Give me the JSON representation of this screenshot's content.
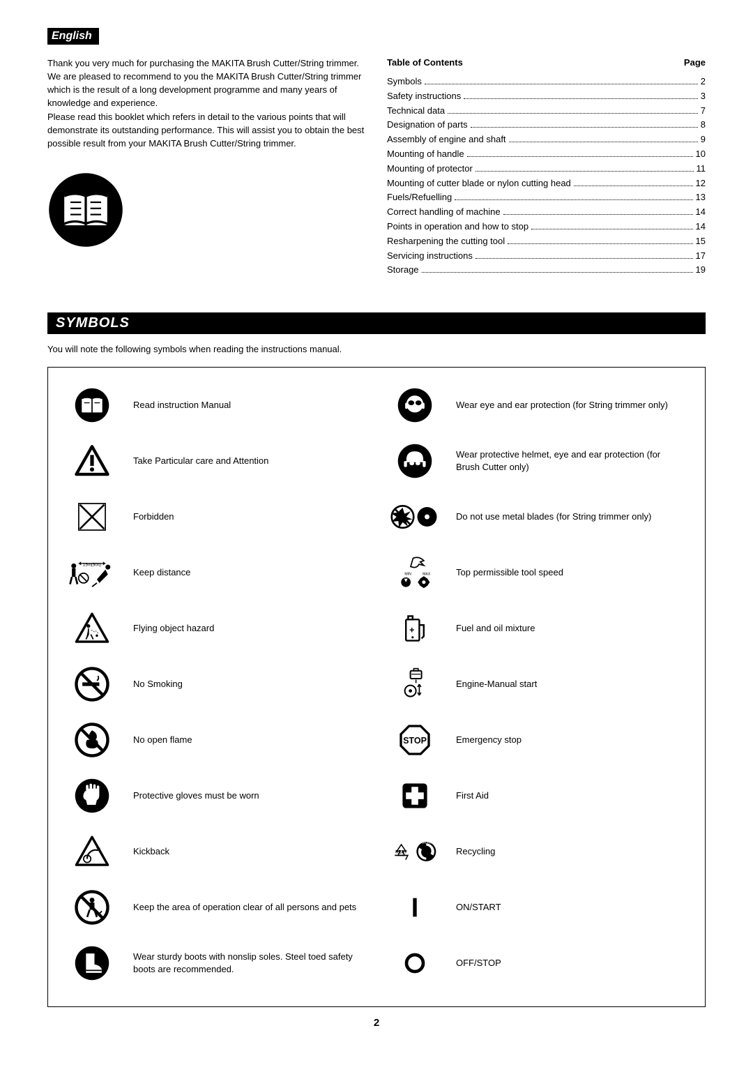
{
  "language_tag": "English",
  "intro": {
    "p1": "Thank you very much for purchasing the MAKITA Brush Cutter/String trimmer. We are pleased to recommend to you the MAKITA Brush Cutter/String trimmer which is the result of a long development programme and many years of knowledge and experience.",
    "p2": "Please read this booklet which refers in detail to the various points that will demonstrate its outstanding performance.  This will assist you to obtain the best possible result from your MAKITA Brush Cutter/String trimmer."
  },
  "toc": {
    "header_left": "Table of Contents",
    "header_right": "Page",
    "items": [
      {
        "title": "Symbols",
        "page": "2"
      },
      {
        "title": "Safety instructions",
        "page": "3"
      },
      {
        "title": "Technical data",
        "page": "7"
      },
      {
        "title": "Designation of parts",
        "page": "8"
      },
      {
        "title": "Assembly of engine and shaft",
        "page": "9"
      },
      {
        "title": "Mounting of handle",
        "page": "10"
      },
      {
        "title": "Mounting of protector",
        "page": "11"
      },
      {
        "title": "Mounting of cutter blade or nylon cutting head",
        "page": "12"
      },
      {
        "title": "Fuels/Refuelling",
        "page": "13"
      },
      {
        "title": "Correct handling of machine",
        "page": "14"
      },
      {
        "title": "Points in operation and how to stop",
        "page": "14"
      },
      {
        "title": "Resharpening the cutting tool",
        "page": "15"
      },
      {
        "title": "Servicing instructions",
        "page": "17"
      },
      {
        "title": "Storage",
        "page": "19"
      }
    ]
  },
  "symbols_section": {
    "heading": "SYMBOLS",
    "intro": "You will note the following symbols when reading the instructions manual.",
    "left": [
      {
        "label": "Read instruction Manual",
        "icon": "read-manual-icon"
      },
      {
        "label": "Take Particular care and Attention",
        "icon": "attention-icon"
      },
      {
        "label": "Forbidden",
        "icon": "forbidden-icon"
      },
      {
        "label": "Keep distance",
        "icon": "keep-distance-icon"
      },
      {
        "label": "Flying object hazard",
        "icon": "flying-object-icon"
      },
      {
        "label": "No Smoking",
        "icon": "no-smoking-icon"
      },
      {
        "label": "No open flame",
        "icon": "no-flame-icon"
      },
      {
        "label": "Protective gloves must be worn",
        "icon": "gloves-icon"
      },
      {
        "label": "Kickback",
        "icon": "kickback-icon"
      },
      {
        "label": "Keep the area of operation clear of all persons and pets",
        "icon": "keep-clear-icon"
      },
      {
        "label": "Wear sturdy boots with nonslip soles. Steel toed safety boots are recommended.",
        "icon": "boots-icon"
      }
    ],
    "right": [
      {
        "label": "Wear eye and ear protection (for String trimmer only)",
        "icon": "eye-ear-protection-icon"
      },
      {
        "label": "Wear protective helmet, eye and ear protection (for Brush Cutter only)",
        "icon": "helmet-protection-icon"
      },
      {
        "label": "Do not use metal blades (for String trimmer only)",
        "icon": "no-metal-blades-icon"
      },
      {
        "label": "Top permissible tool speed",
        "icon": "tool-speed-icon"
      },
      {
        "label": "Fuel and oil mixture",
        "icon": "fuel-oil-icon"
      },
      {
        "label": "Engine-Manual start",
        "icon": "manual-start-icon"
      },
      {
        "label": "Emergency stop",
        "icon": "emergency-stop-icon"
      },
      {
        "label": "First Aid",
        "icon": "first-aid-icon"
      },
      {
        "label": "Recycling",
        "icon": "recycling-icon"
      },
      {
        "label": "ON/START",
        "icon": "on-start-icon"
      },
      {
        "label": "OFF/STOP",
        "icon": "off-stop-icon"
      }
    ]
  },
  "page_number": "2",
  "style": {
    "body_font_size": 13,
    "bg": "#ffffff",
    "fg": "#000000"
  }
}
